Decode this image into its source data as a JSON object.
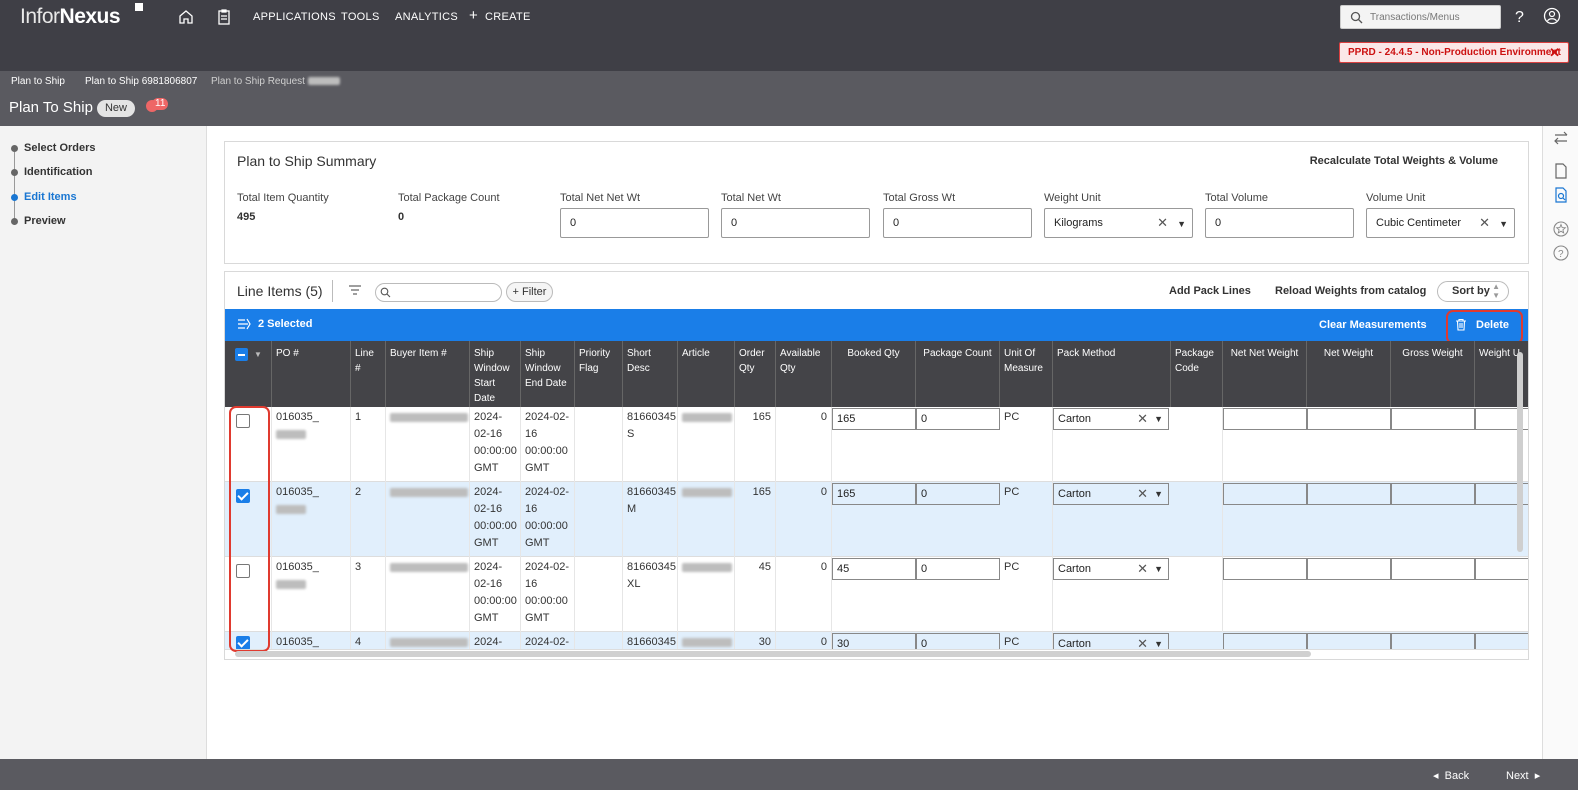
{
  "header": {
    "brand_light": "Infor",
    "brand_bold": "Nexus",
    "nav": [
      "APPLICATIONS",
      "TOOLS",
      "ANALYTICS",
      "CREATE"
    ],
    "search_placeholder": "Transactions/Menus",
    "env_banner": "PPRD - 24.4.5 - Non-Production Environment"
  },
  "breadcrumb": [
    "Plan to Ship",
    "Plan to Ship 6981806807",
    "Plan to Ship Request"
  ],
  "page": {
    "title": "Plan To Ship",
    "status_badge": "New",
    "notification_count": "11"
  },
  "steps": [
    {
      "label": "Select Orders",
      "active": false
    },
    {
      "label": "Identification",
      "active": false
    },
    {
      "label": "Edit Items",
      "active": true
    },
    {
      "label": "Preview",
      "active": false
    }
  ],
  "summary": {
    "title": "Plan to Ship Summary",
    "recalc_label": "Recalculate Total Weights & Volume",
    "total_item_quantity_label": "Total Item Quantity",
    "total_item_quantity": "495",
    "total_package_count_label": "Total Package Count",
    "total_package_count": "0",
    "total_net_net_wt_label": "Total Net Net Wt",
    "total_net_net_wt": "0",
    "total_net_wt_label": "Total Net Wt",
    "total_net_wt": "0",
    "total_gross_wt_label": "Total Gross Wt",
    "total_gross_wt": "0",
    "weight_unit_label": "Weight Unit",
    "weight_unit": "Kilograms",
    "total_volume_label": "Total Volume",
    "total_volume": "0",
    "volume_unit_label": "Volume Unit",
    "volume_unit": "Cubic Centimeter"
  },
  "line_items": {
    "title": "Line Items (5)",
    "filter_label": "+ Filter",
    "add_pack_lines": "Add Pack Lines",
    "reload_weights": "Reload Weights from catalog",
    "sort_by": "Sort by",
    "selected_text": "2 Selected",
    "clear_measurements": "Clear Measurements",
    "delete_label": "Delete",
    "columns": [
      "PO #",
      "Line #",
      "Buyer Item #",
      "Ship Window Start Date",
      "Ship Window End Date",
      "Priority Flag",
      "Short Desc",
      "Article",
      "Order Qty",
      "Available Qty",
      "Booked Qty",
      "Package Count",
      "Unit Of Measure",
      "Pack Method",
      "Package Code",
      "Net Net Weight",
      "Net Weight",
      "Gross Weight",
      "Weight U"
    ],
    "rows": [
      {
        "po": "016035_",
        "line": "1",
        "start": "2024-02-16 00:00:00 GMT",
        "end": "2024-02-16 00:00:00 GMT",
        "short_desc": "81660345 S",
        "order_qty": "165",
        "available_qty": "0",
        "booked_qty": "165",
        "package_count": "0",
        "uom": "PC",
        "pack_method": "Carton",
        "selected": false
      },
      {
        "po": "016035_",
        "line": "2",
        "start": "2024-02-16 00:00:00 GMT",
        "end": "2024-02-16 00:00:00 GMT",
        "short_desc": "81660345 M",
        "order_qty": "165",
        "available_qty": "0",
        "booked_qty": "165",
        "package_count": "0",
        "uom": "PC",
        "pack_method": "Carton",
        "selected": true
      },
      {
        "po": "016035_",
        "line": "3",
        "start": "2024-02-16 00:00:00 GMT",
        "end": "2024-02-16 00:00:00 GMT",
        "short_desc": "81660345 XL",
        "order_qty": "45",
        "available_qty": "0",
        "booked_qty": "45",
        "package_count": "0",
        "uom": "PC",
        "pack_method": "Carton",
        "selected": false
      },
      {
        "po": "016035_",
        "line": "4",
        "start": "2024-02-",
        "end": "2024-02-",
        "short_desc": "81660345",
        "order_qty": "30",
        "available_qty": "0",
        "booked_qty": "30",
        "package_count": "0",
        "uom": "PC",
        "pack_method": "Carton",
        "selected": true
      }
    ]
  },
  "footer": {
    "back": "Back",
    "next": "Next"
  },
  "colors": {
    "accent": "#1a7ee8",
    "topbar": "#3f3f46",
    "highlight": "#e03a2f"
  }
}
